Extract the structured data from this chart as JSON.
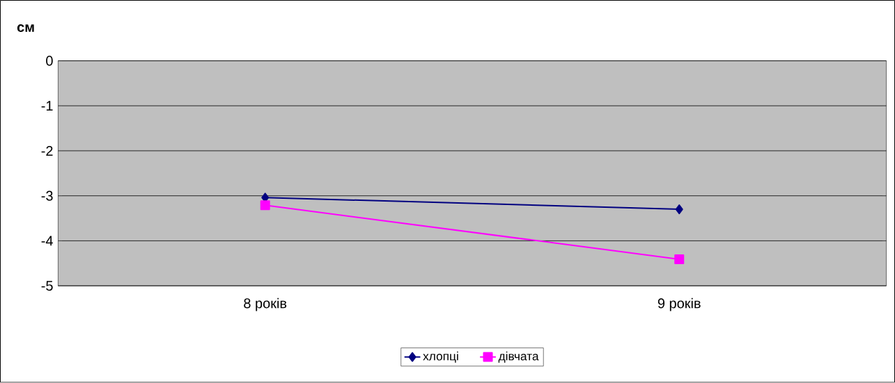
{
  "chart_data": {
    "type": "line",
    "ylabel": "см",
    "categories": [
      "8 років",
      "9 років"
    ],
    "series": [
      {
        "name": "хлопці",
        "color": "#000080",
        "marker": "diamond",
        "values": [
          -3.04,
          -3.3
        ]
      },
      {
        "name": "дівчата",
        "color": "#ff00ff",
        "marker": "square",
        "values": [
          -3.21,
          -4.41
        ]
      }
    ],
    "ylim": [
      -5,
      0
    ],
    "yticks": [
      -5,
      -4,
      -3,
      -2,
      -1,
      0
    ],
    "grid": "y",
    "legend": "bottom"
  }
}
